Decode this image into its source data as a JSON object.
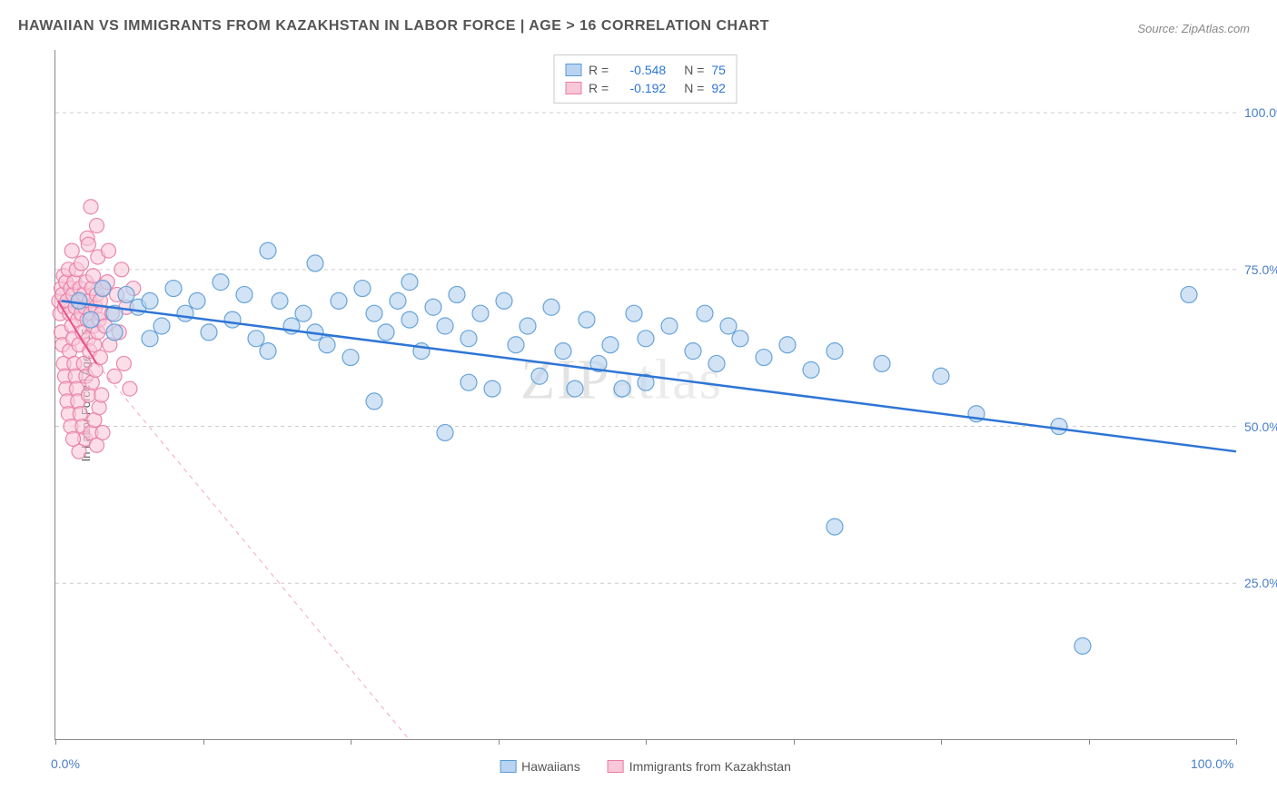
{
  "title": "HAWAIIAN VS IMMIGRANTS FROM KAZAKHSTAN IN LABOR FORCE | AGE > 16 CORRELATION CHART",
  "source_label": "Source: ZipAtlas.com",
  "watermark": "ZIPatlas",
  "y_axis_label": "In Labor Force | Age > 16",
  "chart": {
    "type": "scatter",
    "xlim": [
      0,
      100
    ],
    "ylim": [
      0,
      110
    ],
    "x_ticks": [
      0,
      12.5,
      25,
      37.5,
      50,
      62.5,
      75,
      87.5,
      100
    ],
    "x_tick_labels_shown": {
      "0": "0.0%",
      "100": "100.0%"
    },
    "y_grid": [
      25,
      50,
      75,
      100
    ],
    "y_tick_labels": {
      "25": "25.0%",
      "50": "50.0%",
      "75": "75.0%",
      "100": "100.0%"
    },
    "background_color": "#ffffff",
    "grid_color": "#cccccc",
    "axis_color": "#888888"
  },
  "legend_top": [
    {
      "swatch_fill": "#b8d4f0",
      "swatch_border": "#5b9bd5",
      "r_label": "R =",
      "r_value": "-0.548",
      "n_label": "N =",
      "n_value": "75"
    },
    {
      "swatch_fill": "#f8c8d8",
      "swatch_border": "#e87ca5",
      "r_label": "R =",
      "r_value": "-0.192",
      "n_label": "N =",
      "n_value": "92"
    }
  ],
  "legend_bottom": [
    {
      "swatch_fill": "#b8d4f0",
      "swatch_border": "#5b9bd5",
      "label": "Hawaiians"
    },
    {
      "swatch_fill": "#f8c8d8",
      "swatch_border": "#e87ca5",
      "label": "Immigrants from Kazakhstan"
    }
  ],
  "series": {
    "hawaiians": {
      "marker_fill": "#b8d4f0",
      "marker_stroke": "#5b9bd5",
      "marker_opacity": 0.65,
      "marker_radius": 9,
      "trend_color": "#2e75d6",
      "trend_width": 2.5,
      "trend_solid_x": [
        0.5,
        100
      ],
      "trend_solid_y": [
        70,
        46
      ],
      "points": [
        [
          2,
          70
        ],
        [
          3,
          67
        ],
        [
          4,
          72
        ],
        [
          5,
          68
        ],
        [
          5,
          65
        ],
        [
          6,
          71
        ],
        [
          7,
          69
        ],
        [
          8,
          70
        ],
        [
          9,
          66
        ],
        [
          10,
          72
        ],
        [
          11,
          68
        ],
        [
          12,
          70
        ],
        [
          13,
          65
        ],
        [
          14,
          73
        ],
        [
          15,
          67
        ],
        [
          16,
          71
        ],
        [
          17,
          64
        ],
        [
          18,
          78
        ],
        [
          18,
          62
        ],
        [
          19,
          70
        ],
        [
          20,
          66
        ],
        [
          21,
          68
        ],
        [
          22,
          65
        ],
        [
          22,
          76
        ],
        [
          23,
          63
        ],
        [
          24,
          70
        ],
        [
          25,
          61
        ],
        [
          26,
          72
        ],
        [
          27,
          68
        ],
        [
          27,
          54
        ],
        [
          28,
          65
        ],
        [
          29,
          70
        ],
        [
          30,
          67
        ],
        [
          30,
          73
        ],
        [
          31,
          62
        ],
        [
          32,
          69
        ],
        [
          33,
          66
        ],
        [
          34,
          71
        ],
        [
          35,
          64
        ],
        [
          35,
          57
        ],
        [
          36,
          68
        ],
        [
          37,
          56
        ],
        [
          38,
          70
        ],
        [
          39,
          63
        ],
        [
          40,
          66
        ],
        [
          41,
          58
        ],
        [
          42,
          69
        ],
        [
          43,
          62
        ],
        [
          44,
          56
        ],
        [
          45,
          67
        ],
        [
          46,
          60
        ],
        [
          47,
          63
        ],
        [
          48,
          56
        ],
        [
          49,
          68
        ],
        [
          50,
          64
        ],
        [
          50,
          57
        ],
        [
          52,
          66
        ],
        [
          54,
          62
        ],
        [
          55,
          68
        ],
        [
          56,
          60
        ],
        [
          57,
          66
        ],
        [
          58,
          64
        ],
        [
          60,
          61
        ],
        [
          62,
          63
        ],
        [
          64,
          59
        ],
        [
          66,
          62
        ],
        [
          66,
          34
        ],
        [
          70,
          60
        ],
        [
          75,
          58
        ],
        [
          78,
          52
        ],
        [
          85,
          50
        ],
        [
          87,
          15
        ],
        [
          96,
          71
        ],
        [
          33,
          49
        ],
        [
          8,
          64
        ]
      ]
    },
    "kazakhstan": {
      "marker_fill": "#f8c8d8",
      "marker_stroke": "#e87ca5",
      "marker_opacity": 0.6,
      "marker_radius": 8,
      "trend_color": "#e8528a",
      "trend_width": 2,
      "trend_solid_x": [
        0.2,
        3.5
      ],
      "trend_solid_y": [
        70,
        60
      ],
      "trend_dash_x": [
        3.5,
        30
      ],
      "trend_dash_y": [
        60,
        0
      ],
      "points": [
        [
          0.3,
          70
        ],
        [
          0.4,
          68
        ],
        [
          0.5,
          72
        ],
        [
          0.5,
          65
        ],
        [
          0.6,
          71
        ],
        [
          0.6,
          63
        ],
        [
          0.7,
          74
        ],
        [
          0.7,
          60
        ],
        [
          0.8,
          69
        ],
        [
          0.8,
          58
        ],
        [
          0.9,
          73
        ],
        [
          0.9,
          56
        ],
        [
          1.0,
          70
        ],
        [
          1.0,
          54
        ],
        [
          1.1,
          75
        ],
        [
          1.1,
          52
        ],
        [
          1.2,
          68
        ],
        [
          1.2,
          62
        ],
        [
          1.3,
          72
        ],
        [
          1.3,
          50
        ],
        [
          1.4,
          66
        ],
        [
          1.4,
          78
        ],
        [
          1.5,
          64
        ],
        [
          1.5,
          71
        ],
        [
          1.6,
          60
        ],
        [
          1.6,
          73
        ],
        [
          1.7,
          58
        ],
        [
          1.7,
          69
        ],
        [
          1.8,
          56
        ],
        [
          1.8,
          75
        ],
        [
          1.9,
          67
        ],
        [
          1.9,
          54
        ],
        [
          2.0,
          70
        ],
        [
          2.0,
          63
        ],
        [
          2.1,
          72
        ],
        [
          2.1,
          52
        ],
        [
          2.2,
          68
        ],
        [
          2.2,
          76
        ],
        [
          2.3,
          65
        ],
        [
          2.3,
          50
        ],
        [
          2.4,
          71
        ],
        [
          2.4,
          60
        ],
        [
          2.5,
          69
        ],
        [
          2.5,
          48
        ],
        [
          2.6,
          73
        ],
        [
          2.6,
          58
        ],
        [
          2.7,
          67
        ],
        [
          2.7,
          80
        ],
        [
          2.8,
          64
        ],
        [
          2.8,
          55
        ],
        [
          2.9,
          70
        ],
        [
          2.9,
          62
        ],
        [
          3.0,
          68
        ],
        [
          3.0,
          49
        ],
        [
          3.1,
          72
        ],
        [
          3.1,
          57
        ],
        [
          3.2,
          66
        ],
        [
          3.2,
          74
        ],
        [
          3.3,
          63
        ],
        [
          3.3,
          51
        ],
        [
          3.4,
          69
        ],
        [
          3.4,
          59
        ],
        [
          3.5,
          71
        ],
        [
          3.5,
          47
        ],
        [
          3.6,
          65
        ],
        [
          3.6,
          77
        ],
        [
          3.7,
          67
        ],
        [
          3.7,
          53
        ],
        [
          3.8,
          70
        ],
        [
          3.8,
          61
        ],
        [
          3.9,
          68
        ],
        [
          3.9,
          55
        ],
        [
          4.0,
          72
        ],
        [
          4.0,
          49
        ],
        [
          4.2,
          66
        ],
        [
          4.4,
          73
        ],
        [
          4.6,
          63
        ],
        [
          4.8,
          68
        ],
        [
          5.0,
          58
        ],
        [
          5.2,
          71
        ],
        [
          5.4,
          65
        ],
        [
          5.6,
          75
        ],
        [
          5.8,
          60
        ],
        [
          6.0,
          69
        ],
        [
          6.3,
          56
        ],
        [
          6.6,
          72
        ],
        [
          3.0,
          85
        ],
        [
          3.5,
          82
        ],
        [
          2.0,
          46
        ],
        [
          4.5,
          78
        ],
        [
          1.5,
          48
        ],
        [
          2.8,
          79
        ]
      ]
    }
  }
}
